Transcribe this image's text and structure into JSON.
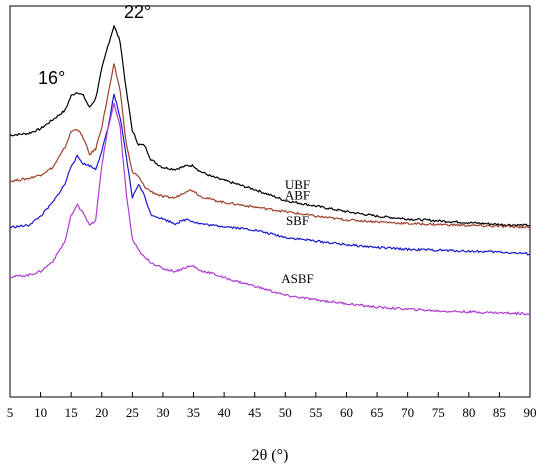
{
  "chart_data": {
    "type": "line",
    "title": "",
    "xlabel": "2θ (°)",
    "ylabel": "",
    "xlim": [
      5,
      90
    ],
    "yticks": "none",
    "grid": false,
    "x_ticks": [
      5,
      10,
      15,
      20,
      25,
      30,
      35,
      40,
      45,
      50,
      55,
      60,
      65,
      70,
      75,
      80,
      85,
      90
    ],
    "annotations": [
      {
        "text": "16°",
        "x": 16
      },
      {
        "text": "22°",
        "x": 22
      }
    ],
    "series": [
      {
        "name": "UBF",
        "color": "#000000",
        "label_x": 52,
        "points": [
          [
            5,
            103
          ],
          [
            8,
            105
          ],
          [
            10,
            110
          ],
          [
            12,
            120
          ],
          [
            14,
            130
          ],
          [
            15,
            146
          ],
          [
            16,
            150
          ],
          [
            17,
            146
          ],
          [
            18,
            133
          ],
          [
            19,
            143
          ],
          [
            20,
            175
          ],
          [
            21,
            200
          ],
          [
            22,
            222
          ],
          [
            23,
            205
          ],
          [
            24,
            152
          ],
          [
            25,
            108
          ],
          [
            26,
            93
          ],
          [
            27,
            92
          ],
          [
            28,
            77
          ],
          [
            29,
            72
          ],
          [
            30,
            68
          ],
          [
            32,
            66
          ],
          [
            34,
            70
          ],
          [
            35,
            70
          ],
          [
            36,
            64
          ],
          [
            38,
            58
          ],
          [
            40,
            54
          ],
          [
            45,
            44
          ],
          [
            50,
            32
          ],
          [
            55,
            26
          ],
          [
            60,
            20
          ],
          [
            65,
            15
          ],
          [
            70,
            12
          ],
          [
            75,
            10
          ],
          [
            80,
            8
          ],
          [
            85,
            6
          ],
          [
            90,
            5
          ]
        ]
      },
      {
        "name": "ABF",
        "color": "#a0402c",
        "label_x": 52,
        "points": [
          [
            5,
            53
          ],
          [
            8,
            56
          ],
          [
            10,
            60
          ],
          [
            12,
            68
          ],
          [
            14,
            90
          ],
          [
            15,
            107
          ],
          [
            16,
            110
          ],
          [
            17,
            100
          ],
          [
            18,
            82
          ],
          [
            19,
            88
          ],
          [
            20,
            112
          ],
          [
            21,
            146
          ],
          [
            22,
            180
          ],
          [
            23,
            152
          ],
          [
            24,
            94
          ],
          [
            25,
            63
          ],
          [
            26,
            58
          ],
          [
            27,
            47
          ],
          [
            28,
            42
          ],
          [
            30,
            36
          ],
          [
            32,
            35
          ],
          [
            34,
            43
          ],
          [
            35,
            43
          ],
          [
            36,
            37
          ],
          [
            38,
            33
          ],
          [
            40,
            30
          ],
          [
            45,
            25
          ],
          [
            50,
            20
          ],
          [
            55,
            15
          ],
          [
            60,
            11
          ],
          [
            65,
            9
          ],
          [
            70,
            7
          ],
          [
            75,
            6
          ],
          [
            80,
            5
          ],
          [
            85,
            4
          ],
          [
            90,
            3
          ]
        ]
      },
      {
        "name": "SBF",
        "color": "#1a1acc",
        "label_x": 52,
        "points": [
          [
            5,
            3
          ],
          [
            8,
            5
          ],
          [
            10,
            15
          ],
          [
            12,
            30
          ],
          [
            14,
            50
          ],
          [
            15,
            70
          ],
          [
            16,
            80
          ],
          [
            17,
            72
          ],
          [
            18,
            70
          ],
          [
            19,
            66
          ],
          [
            20,
            86
          ],
          [
            21,
            110
          ],
          [
            22,
            148
          ],
          [
            23,
            122
          ],
          [
            24,
            80
          ],
          [
            25,
            35
          ],
          [
            26,
            50
          ],
          [
            27,
            37
          ],
          [
            28,
            17
          ],
          [
            30,
            12
          ],
          [
            32,
            7
          ],
          [
            34,
            12
          ],
          [
            35,
            9
          ],
          [
            36,
            7
          ],
          [
            38,
            5
          ],
          [
            40,
            4
          ],
          [
            45,
            0
          ],
          [
            50,
            -8
          ],
          [
            55,
            -12
          ],
          [
            60,
            -16
          ],
          [
            65,
            -19
          ],
          [
            70,
            -21
          ],
          [
            75,
            -22
          ],
          [
            80,
            -23
          ],
          [
            85,
            -24
          ],
          [
            90,
            -26
          ]
        ]
      },
      {
        "name": "ASBF",
        "color": "#b03ad4",
        "label_x": 52,
        "points": [
          [
            5,
            -51
          ],
          [
            8,
            -49
          ],
          [
            10,
            -45
          ],
          [
            12,
            -34
          ],
          [
            14,
            -12
          ],
          [
            15,
            16
          ],
          [
            16,
            27
          ],
          [
            17,
            19
          ],
          [
            18,
            5
          ],
          [
            19,
            10
          ],
          [
            20,
            70
          ],
          [
            21,
            110
          ],
          [
            22,
            137
          ],
          [
            23,
            112
          ],
          [
            24,
            40
          ],
          [
            25,
            -10
          ],
          [
            26,
            -22
          ],
          [
            27,
            -30
          ],
          [
            28,
            -35
          ],
          [
            30,
            -42
          ],
          [
            32,
            -45
          ],
          [
            34,
            -40
          ],
          [
            35,
            -39
          ],
          [
            36,
            -44
          ],
          [
            38,
            -47
          ],
          [
            40,
            -52
          ],
          [
            45,
            -61
          ],
          [
            50,
            -71
          ],
          [
            55,
            -76
          ],
          [
            60,
            -80
          ],
          [
            65,
            -84
          ],
          [
            70,
            -86
          ],
          [
            75,
            -88
          ],
          [
            80,
            -89
          ],
          [
            85,
            -90
          ],
          [
            90,
            -91
          ]
        ]
      }
    ]
  }
}
